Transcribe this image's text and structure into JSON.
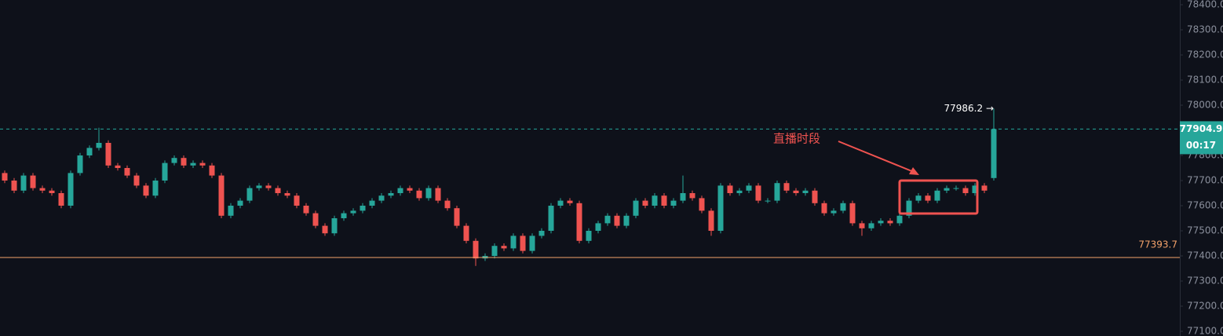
{
  "chart_data": {
    "type": "candlestick",
    "up_color": "#26a69a",
    "down_color": "#ef5350",
    "open": [
      77730,
      77700,
      77660,
      77720,
      77670,
      77660,
      77650,
      77600,
      77730,
      77800,
      77830,
      77850,
      77760,
      77750,
      77720,
      77680,
      77640,
      77700,
      77770,
      77790,
      77760,
      77770,
      77760,
      77720,
      77560,
      77600,
      77620,
      77670,
      77680,
      77670,
      77650,
      77640,
      77600,
      77570,
      77520,
      77490,
      77550,
      77570,
      77580,
      77600,
      77620,
      77640,
      77650,
      77670,
      77660,
      77630,
      77670,
      77620,
      77590,
      77520,
      77460,
      77390,
      77400,
      77440,
      77430,
      77480,
      77420,
      77480,
      77500,
      77600,
      77620,
      77610,
      77460,
      77500,
      77530,
      77560,
      77520,
      77560,
      77620,
      77600,
      77640,
      77600,
      77620,
      77650,
      77630,
      77580,
      77500,
      77680,
      77650,
      77660,
      77680,
      77620,
      77620,
      77690,
      77660,
      77650,
      77660,
      77610,
      77570,
      77580,
      77610,
      77530,
      77510,
      77530,
      77540,
      77530,
      77560,
      77620,
      77640,
      77620,
      77660,
      77670,
      77670,
      77650,
      77680,
      77710
    ],
    "high": [
      77740,
      77710,
      77730,
      77730,
      77680,
      77670,
      77660,
      77740,
      77810,
      77840,
      77910,
      77860,
      77770,
      77760,
      77730,
      77690,
      77710,
      77780,
      77800,
      77800,
      77780,
      77780,
      77770,
      77730,
      77610,
      77630,
      77680,
      77690,
      77690,
      77680,
      77660,
      77650,
      77610,
      77580,
      77530,
      77560,
      77580,
      77590,
      77610,
      77630,
      77650,
      77660,
      77680,
      77680,
      77670,
      77680,
      77680,
      77630,
      77600,
      77530,
      77470,
      77410,
      77450,
      77450,
      77490,
      77490,
      77490,
      77510,
      77610,
      77630,
      77630,
      77620,
      77510,
      77540,
      77570,
      77570,
      77570,
      77630,
      77630,
      77650,
      77650,
      77630,
      77720,
      77660,
      77640,
      77590,
      77690,
      77690,
      77670,
      77690,
      77690,
      77630,
      77700,
      77700,
      77670,
      77670,
      77670,
      77620,
      77590,
      77620,
      77620,
      77540,
      77540,
      77550,
      77550,
      77570,
      77630,
      77650,
      77650,
      77670,
      77680,
      77680,
      77680,
      77690,
      77690,
      77986.2
    ],
    "low": [
      77690,
      77650,
      77650,
      77660,
      77650,
      77640,
      77590,
      77590,
      77720,
      77790,
      77820,
      77750,
      77740,
      77710,
      77670,
      77630,
      77630,
      77690,
      77760,
      77750,
      77750,
      77750,
      77710,
      77550,
      77550,
      77590,
      77610,
      77660,
      77660,
      77640,
      77630,
      77590,
      77560,
      77510,
      77480,
      77480,
      77540,
      77560,
      77570,
      77590,
      77610,
      77630,
      77640,
      77650,
      77620,
      77620,
      77610,
      77580,
      77510,
      77450,
      77360,
      77380,
      77390,
      77420,
      77420,
      77410,
      77410,
      77470,
      77490,
      77590,
      77600,
      77450,
      77450,
      77490,
      77520,
      77510,
      77510,
      77550,
      77590,
      77590,
      77590,
      77590,
      77610,
      77620,
      77570,
      77480,
      77490,
      77640,
      77640,
      77650,
      77610,
      77610,
      77610,
      77650,
      77640,
      77640,
      77600,
      77560,
      77560,
      77570,
      77520,
      77480,
      77500,
      77520,
      77520,
      77520,
      77550,
      77610,
      77610,
      77610,
      77650,
      77660,
      77640,
      77640,
      77650,
      77700
    ],
    "close": [
      77700,
      77660,
      77720,
      77670,
      77660,
      77650,
      77600,
      77730,
      77800,
      77830,
      77850,
      77760,
      77750,
      77720,
      77680,
      77640,
      77700,
      77770,
      77790,
      77760,
      77770,
      77760,
      77720,
      77560,
      77600,
      77620,
      77670,
      77680,
      77670,
      77650,
      77640,
      77600,
      77570,
      77520,
      77490,
      77550,
      77570,
      77580,
      77600,
      77620,
      77640,
      77650,
      77670,
      77660,
      77630,
      77670,
      77620,
      77590,
      77520,
      77460,
      77390,
      77400,
      77440,
      77430,
      77480,
      77420,
      77480,
      77500,
      77600,
      77620,
      77610,
      77460,
      77500,
      77530,
      77560,
      77520,
      77560,
      77620,
      77600,
      77640,
      77600,
      77620,
      77650,
      77630,
      77580,
      77500,
      77680,
      77650,
      77660,
      77680,
      77620,
      77620,
      77690,
      77660,
      77650,
      77660,
      77610,
      77570,
      77580,
      77610,
      77530,
      77510,
      77530,
      77540,
      77530,
      77560,
      77620,
      77640,
      77620,
      77660,
      77670,
      77670,
      77650,
      77680,
      77660,
      77904.9
    ],
    "ylim": [
      77081.25,
      78418.75
    ],
    "yticks": [
      {
        "value": 77100,
        "label": "77100.0"
      },
      {
        "value": 77200,
        "label": "77200.0"
      },
      {
        "value": 77300,
        "label": "77300.0"
      },
      {
        "value": 77400,
        "label": "77400.0"
      },
      {
        "value": 77500,
        "label": "77500.0"
      },
      {
        "value": 77600,
        "label": "77600.0"
      },
      {
        "value": 77700,
        "label": "77700.0"
      },
      {
        "value": 77800,
        "label": "77800.0"
      },
      {
        "value": 77900,
        "label": "77900.0"
      },
      {
        "value": 78000,
        "label": "78000.0"
      },
      {
        "value": 78100,
        "label": "78100.0"
      },
      {
        "value": 78200,
        "label": "78200.0"
      },
      {
        "value": 78300,
        "label": "78300.0"
      },
      {
        "value": 78400,
        "label": "78400.0"
      }
    ],
    "current_price": {
      "value": 77904.9,
      "color": "#26a69a",
      "countdown": "00:17"
    },
    "level_line": {
      "value": 77393.7,
      "color": "#f4a26a"
    },
    "high_marker": {
      "value": 77986.2,
      "label": "77986.2 →"
    },
    "annotation": "直播时段"
  }
}
